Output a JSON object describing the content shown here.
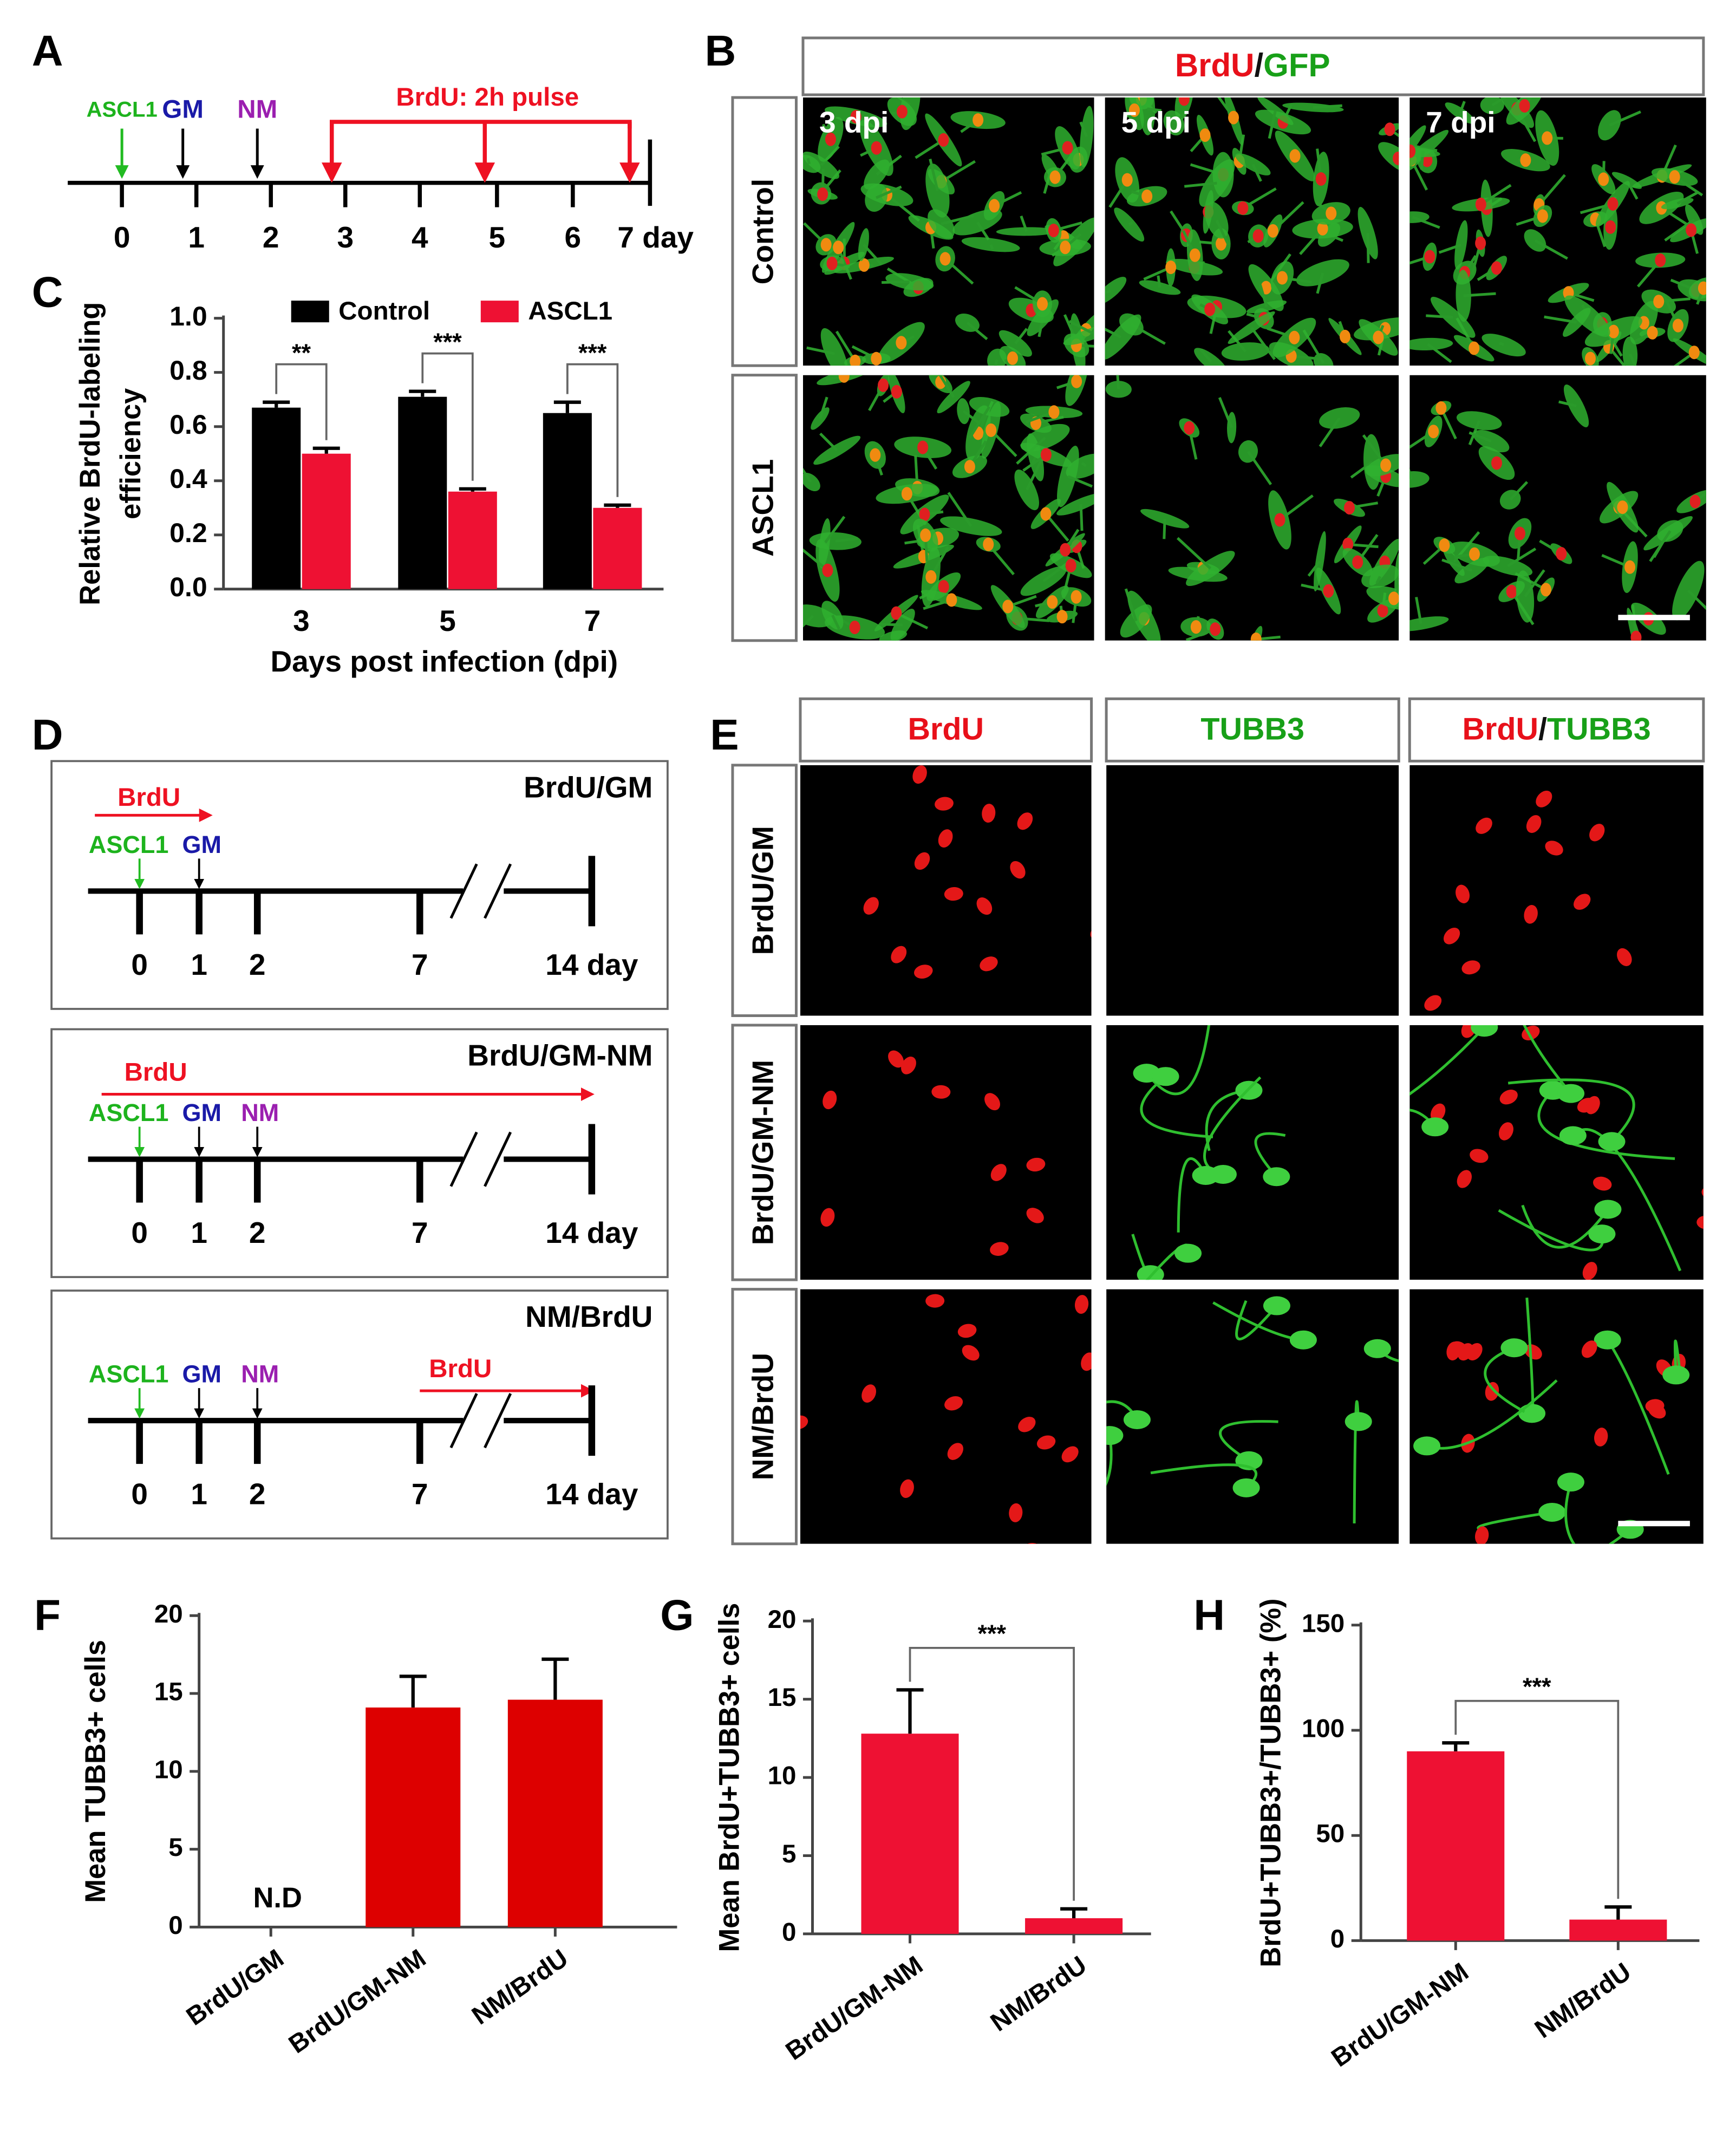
{
  "panel_letters": [
    "A",
    "B",
    "C",
    "D",
    "E",
    "F",
    "G",
    "H"
  ],
  "panel_a": {
    "markers": [
      "ASCL1",
      "GM",
      "NM"
    ],
    "pulse_label": "BrdU: 2h pulse",
    "day_labels": [
      "0",
      "1",
      "2",
      "3",
      "4",
      "5",
      "6",
      "7 day"
    ]
  },
  "panel_b": {
    "header": [
      "BrdU",
      "/",
      "GFP"
    ],
    "columns": [
      "3 dpi",
      "5 dpi",
      "7 dpi"
    ],
    "rows": [
      "Control",
      "ASCL1"
    ]
  },
  "panel_d": {
    "schemes": [
      {
        "title": "BrdU/GM",
        "brdu": "BrdU",
        "markers": [
          "ASCL1",
          "GM"
        ],
        "day_labels": [
          "0",
          "1",
          "2",
          "7",
          "14 day"
        ]
      },
      {
        "title": "BrdU/GM-NM",
        "brdu": "BrdU",
        "markers": [
          "ASCL1",
          "GM",
          "NM"
        ],
        "day_labels": [
          "0",
          "1",
          "2",
          "7",
          "14 day"
        ]
      },
      {
        "title": "NM/BrdU",
        "brdu": "BrdU",
        "markers": [
          "ASCL1",
          "GM",
          "NM"
        ],
        "day_labels": [
          "0",
          "1",
          "2",
          "7",
          "14 day"
        ]
      }
    ]
  },
  "panel_e": {
    "columns": [
      [
        "BrdU"
      ],
      [
        "TUBB3"
      ],
      [
        "BrdU",
        "/",
        "TUBB3"
      ]
    ],
    "rows": [
      "BrdU/GM",
      "BrdU/GM-NM",
      "NM/BrdU"
    ]
  },
  "chart_data": [
    {
      "type": "bar",
      "y_label": [
        "Relative BrdU-labeling",
        "efficiency"
      ],
      "x_label": "Days post infection (dpi)",
      "categories": [
        "3",
        "5",
        "7"
      ],
      "series": [
        {
          "name": "Control",
          "color": "#000000",
          "values": [
            0.67,
            0.71,
            0.65
          ],
          "errors": [
            0.02,
            0.02,
            0.04
          ]
        },
        {
          "name": "ASCL1",
          "color": "#ee1133",
          "values": [
            0.5,
            0.36,
            0.3
          ],
          "errors": [
            0.02,
            0.01,
            0.01
          ]
        }
      ],
      "significance": [
        "**",
        "***",
        "***"
      ],
      "ylim": [
        0,
        1
      ],
      "yticks": [
        {
          "value": 0,
          "label": "0.0"
        },
        0.2,
        0.4,
        0.6,
        0.8,
        {
          "value": 1,
          "label": "1.0"
        }
      ]
    },
    {
      "type": "bar",
      "y_label": "Mean TUBB3+ cells",
      "categories": [
        "BrdU/GM",
        "BrdU/GM-NM",
        "NM/BrdU"
      ],
      "values": [
        null,
        14.1,
        14.6
      ],
      "errors": [
        null,
        2,
        2.6
      ],
      "color": "#dd0000",
      "annotation": "N.D",
      "ylim": [
        0,
        20
      ],
      "yticks": [
        0,
        5,
        10,
        15,
        20
      ]
    },
    {
      "type": "bar",
      "y_label": "Mean BrdU+TUBB3+ cells",
      "categories": [
        "BrdU/GM-NM",
        "NM/BrdU"
      ],
      "values": [
        12.8,
        1
      ],
      "errors": [
        2.8,
        0.6
      ],
      "color": "#ee1133",
      "significance": [
        "***"
      ],
      "ylim": [
        0,
        20
      ],
      "yticks": [
        0,
        5,
        10,
        15,
        20
      ]
    },
    {
      "type": "bar",
      "y_label": "BrdU+TUBB3+/TUBB3+ (%)",
      "categories": [
        "BrdU/GM-NM",
        "NM/BrdU"
      ],
      "values": [
        90,
        10
      ],
      "errors": [
        4,
        6
      ],
      "color": "#ee1133",
      "significance": [
        "***"
      ],
      "ylim": [
        0,
        150
      ],
      "yticks": [
        0,
        50,
        100,
        150
      ]
    }
  ]
}
